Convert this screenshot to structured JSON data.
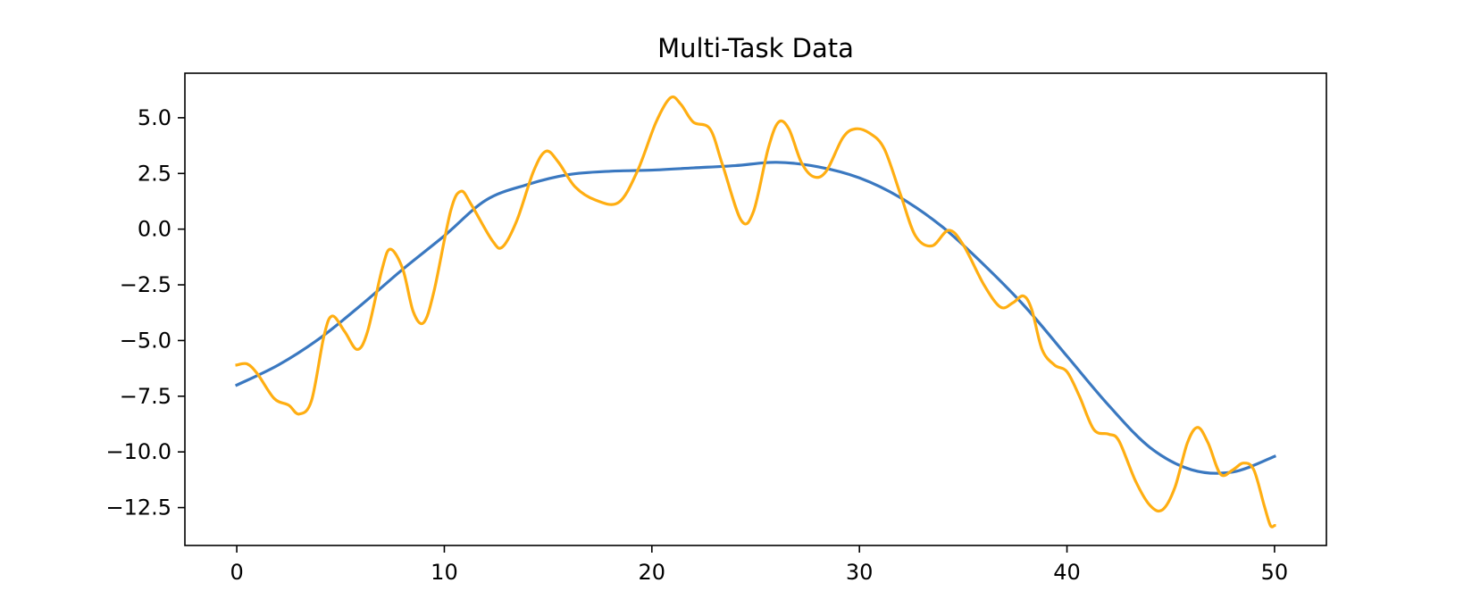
{
  "chart_data": {
    "type": "line",
    "title": "Multi-Task Data",
    "xlabel": "",
    "ylabel": "",
    "xlim": [
      -2.5,
      52.5
    ],
    "ylim": [
      -14.2,
      7.0
    ],
    "x_ticks": [
      {
        "value": 0,
        "label": "0"
      },
      {
        "value": 10,
        "label": "10"
      },
      {
        "value": 20,
        "label": "20"
      },
      {
        "value": 30,
        "label": "30"
      },
      {
        "value": 40,
        "label": "40"
      },
      {
        "value": 50,
        "label": "50"
      }
    ],
    "y_ticks": [
      {
        "value": 5.0,
        "label": "5.0"
      },
      {
        "value": 2.5,
        "label": "2.5"
      },
      {
        "value": 0.0,
        "label": "0.0"
      },
      {
        "value": -2.5,
        "label": "−2.5"
      },
      {
        "value": -5.0,
        "label": "−5.0"
      },
      {
        "value": -7.5,
        "label": "−7.5"
      },
      {
        "value": -10.0,
        "label": "−10.0"
      },
      {
        "value": -12.5,
        "label": "−12.5"
      }
    ],
    "grid": false,
    "legend": "none",
    "series": [
      {
        "color": "#3a78c0",
        "points": [
          [
            0,
            -7.0
          ],
          [
            2,
            -6.1
          ],
          [
            4,
            -4.9
          ],
          [
            6,
            -3.4
          ],
          [
            8,
            -1.8
          ],
          [
            10,
            -0.3
          ],
          [
            12,
            1.3
          ],
          [
            14,
            2.0
          ],
          [
            16,
            2.45
          ],
          [
            18,
            2.6
          ],
          [
            20,
            2.65
          ],
          [
            22,
            2.75
          ],
          [
            24,
            2.85
          ],
          [
            26,
            3.0
          ],
          [
            28,
            2.8
          ],
          [
            30,
            2.3
          ],
          [
            32,
            1.4
          ],
          [
            34,
            0.1
          ],
          [
            36,
            -1.6
          ],
          [
            38,
            -3.5
          ],
          [
            40,
            -5.7
          ],
          [
            42,
            -7.9
          ],
          [
            44,
            -9.8
          ],
          [
            46,
            -10.8
          ],
          [
            48,
            -10.9
          ],
          [
            50,
            -10.2
          ]
        ]
      },
      {
        "color": "#ffae12",
        "points": [
          [
            0,
            -6.1
          ],
          [
            0.5,
            -6.05
          ],
          [
            1,
            -6.5
          ],
          [
            1.8,
            -7.6
          ],
          [
            2.5,
            -7.9
          ],
          [
            3,
            -8.3
          ],
          [
            3.6,
            -7.7
          ],
          [
            4.2,
            -4.8
          ],
          [
            4.6,
            -3.9
          ],
          [
            5.2,
            -4.6
          ],
          [
            5.8,
            -5.4
          ],
          [
            6.3,
            -4.6
          ],
          [
            7,
            -1.8
          ],
          [
            7.4,
            -0.9
          ],
          [
            8,
            -1.8
          ],
          [
            8.5,
            -3.7
          ],
          [
            9,
            -4.2
          ],
          [
            9.5,
            -2.8
          ],
          [
            10.3,
            0.8
          ],
          [
            10.8,
            1.7
          ],
          [
            11.3,
            1.1
          ],
          [
            12.3,
            -0.5
          ],
          [
            12.8,
            -0.8
          ],
          [
            13.5,
            0.4
          ],
          [
            14.3,
            2.6
          ],
          [
            14.9,
            3.5
          ],
          [
            15.5,
            3.0
          ],
          [
            16.3,
            1.9
          ],
          [
            17.3,
            1.3
          ],
          [
            18.4,
            1.2
          ],
          [
            19.3,
            2.6
          ],
          [
            20.2,
            4.8
          ],
          [
            20.9,
            5.9
          ],
          [
            21.4,
            5.6
          ],
          [
            22,
            4.8
          ],
          [
            22.8,
            4.5
          ],
          [
            23.4,
            2.9
          ],
          [
            24.3,
            0.4
          ],
          [
            24.9,
            0.8
          ],
          [
            25.6,
            3.6
          ],
          [
            26.1,
            4.8
          ],
          [
            26.6,
            4.5
          ],
          [
            27.2,
            3.0
          ],
          [
            27.8,
            2.35
          ],
          [
            28.4,
            2.6
          ],
          [
            29.2,
            4.1
          ],
          [
            29.8,
            4.5
          ],
          [
            30.5,
            4.3
          ],
          [
            31.2,
            3.6
          ],
          [
            32,
            1.5
          ],
          [
            32.7,
            -0.3
          ],
          [
            33.5,
            -0.75
          ],
          [
            34.3,
            -0.05
          ],
          [
            35,
            -0.7
          ],
          [
            36,
            -2.5
          ],
          [
            36.8,
            -3.5
          ],
          [
            37.4,
            -3.3
          ],
          [
            37.9,
            -3.0
          ],
          [
            38.3,
            -3.6
          ],
          [
            38.8,
            -5.4
          ],
          [
            39.4,
            -6.1
          ],
          [
            40,
            -6.4
          ],
          [
            40.6,
            -7.5
          ],
          [
            41.3,
            -9.0
          ],
          [
            42,
            -9.2
          ],
          [
            42.5,
            -9.5
          ],
          [
            43.3,
            -11.3
          ],
          [
            44,
            -12.4
          ],
          [
            44.6,
            -12.6
          ],
          [
            45.2,
            -11.6
          ],
          [
            45.8,
            -9.6
          ],
          [
            46.3,
            -8.9
          ],
          [
            46.8,
            -9.6
          ],
          [
            47.4,
            -11.0
          ],
          [
            48,
            -10.8
          ],
          [
            48.5,
            -10.5
          ],
          [
            49,
            -10.8
          ],
          [
            49.5,
            -12.4
          ],
          [
            49.8,
            -13.3
          ],
          [
            50,
            -13.3
          ]
        ]
      }
    ]
  }
}
